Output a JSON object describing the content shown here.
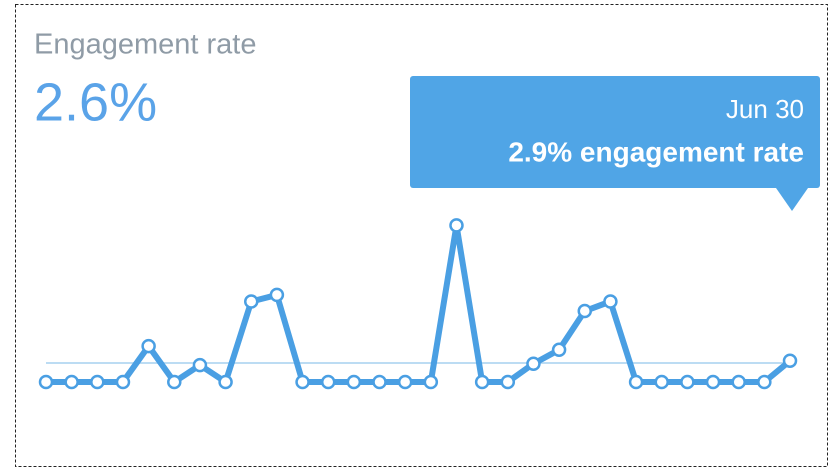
{
  "chart_data": {
    "type": "line",
    "title": "Engagement rate",
    "headline": {
      "value": 2.6,
      "label": "2.6%"
    },
    "values": [
      0,
      0,
      0,
      0,
      4.9,
      0,
      2.3,
      0,
      11,
      11.9,
      0,
      0,
      0,
      0,
      0,
      0,
      21.4,
      0,
      0,
      2.5,
      4.4,
      9.7,
      11,
      0,
      0,
      0,
      0,
      0,
      0,
      2.9
    ],
    "color": "#4a9fe3",
    "ylim": [
      0,
      22
    ],
    "tooltip": {
      "date": "Jun 30",
      "value": 2.9,
      "label": "2.9% engagement rate"
    }
  }
}
